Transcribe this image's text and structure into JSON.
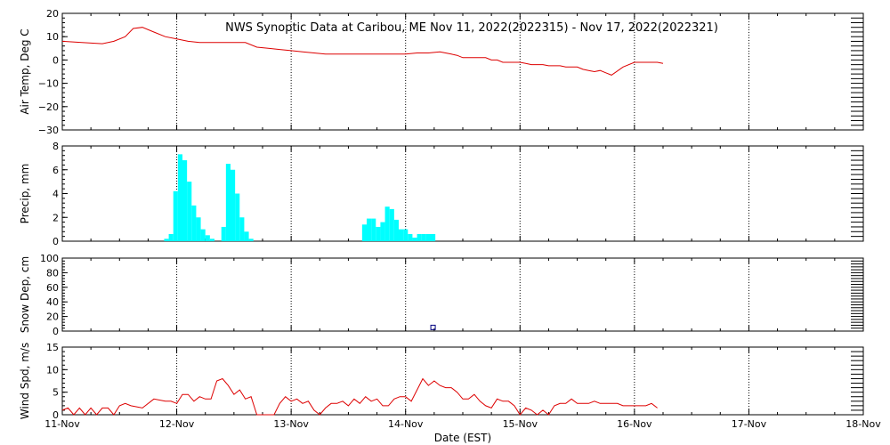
{
  "title": "NWS Synoptic Data at Caribou, ME    Nov 11, 2022(2022315) - Nov 17, 2022(2022321)",
  "xlabel": "Date (EST)",
  "x_ticks": [
    "11-Nov",
    "12-Nov",
    "13-Nov",
    "14-Nov",
    "15-Nov",
    "16-Nov",
    "17-Nov",
    "18-Nov"
  ],
  "colors": {
    "temp": "#dd0000",
    "wind": "#dd0000",
    "precip": "#00ffff",
    "snow": "#000080"
  },
  "chart_data": [
    {
      "type": "line",
      "ylabel": "Air Temp, Deg C",
      "ylim": [
        -30,
        20
      ],
      "yticks": [
        "20",
        "10",
        "0",
        "−10",
        "−20",
        "−30"
      ],
      "grid": true,
      "series": [
        {
          "x": [
            0,
            0.17,
            0.35,
            0.45,
            0.55,
            0.62,
            0.7,
            0.8,
            0.9,
            1.0,
            1.1,
            1.2,
            1.3,
            1.4,
            1.5,
            1.6,
            1.7,
            1.8,
            1.9,
            2.0,
            2.1,
            2.2,
            2.3,
            2.4,
            2.5,
            2.6,
            2.7,
            2.8,
            2.9,
            3.0,
            3.1,
            3.2,
            3.3,
            3.35,
            3.4,
            3.45,
            3.5,
            3.55,
            3.6,
            3.65,
            3.7,
            3.75,
            3.8,
            3.85,
            3.9,
            4.0,
            4.05,
            4.1,
            4.15,
            4.2,
            4.25,
            4.3,
            4.35,
            4.4,
            4.45,
            4.5,
            4.55,
            4.6,
            4.65,
            4.7,
            4.75,
            4.8,
            4.9,
            5.0,
            5.1,
            5.2,
            5.25
          ],
          "values": [
            8,
            7.5,
            7,
            8,
            10,
            13.5,
            14,
            12,
            10,
            9,
            8,
            7.5,
            7.5,
            7.5,
            7.5,
            7.5,
            5.5,
            5,
            4.5,
            4,
            3.5,
            3,
            2.5,
            2.5,
            2.5,
            2.5,
            2.5,
            2.5,
            2.5,
            2.5,
            3,
            3,
            3.5,
            3,
            2.5,
            2,
            1,
            1,
            1,
            1,
            1,
            0,
            0,
            -1,
            -1,
            -1,
            -1.5,
            -2,
            -2,
            -2,
            -2.5,
            -2.5,
            -2.5,
            -3,
            -3,
            -3,
            -4,
            -4.5,
            -5,
            -4.5,
            -5.5,
            -6.5,
            -3,
            -1,
            -1,
            -1,
            -1.5
          ]
        }
      ]
    },
    {
      "type": "bar",
      "ylabel": "Precip, mm",
      "ylim": [
        0,
        8
      ],
      "yticks": [
        "8",
        "6",
        "4",
        "2",
        "0"
      ],
      "grid": true,
      "bar_width": 0.04,
      "x": [
        0.91,
        0.95,
        0.99,
        1.03,
        1.07,
        1.11,
        1.15,
        1.19,
        1.23,
        1.27,
        1.31,
        1.41,
        1.45,
        1.49,
        1.53,
        1.57,
        1.61,
        1.65,
        2.64,
        2.68,
        2.72,
        2.76,
        2.8,
        2.84,
        2.88,
        2.92,
        2.96,
        3.0,
        3.04,
        3.08,
        3.12,
        3.16,
        3.2,
        3.24
      ],
      "values": [
        0.2,
        0.6,
        4.2,
        7.3,
        6.8,
        5,
        3,
        2,
        1,
        0.5,
        0.2,
        1.2,
        6.5,
        6,
        4,
        2,
        0.8,
        0.2,
        1.4,
        1.9,
        1.9,
        1.2,
        1.6,
        2.9,
        2.7,
        1.8,
        1,
        1,
        0.6,
        0.3,
        0.6,
        0.6,
        0.6,
        0.6
      ]
    },
    {
      "type": "scatter",
      "ylabel": "Snow Dep, cm",
      "ylim": [
        0,
        100
      ],
      "yticks": [
        "100",
        "80",
        "60",
        "40",
        "20",
        "0"
      ],
      "grid": true,
      "x": [
        3.24
      ],
      "values": [
        5
      ]
    },
    {
      "type": "line",
      "ylabel": "Wind Spd, m/s",
      "ylim": [
        0,
        15
      ],
      "yticks": [
        "15",
        "10",
        "5",
        "0"
      ],
      "grid": true,
      "series": [
        {
          "x": [
            0,
            0.05,
            0.1,
            0.15,
            0.2,
            0.25,
            0.3,
            0.35,
            0.4,
            0.45,
            0.5,
            0.55,
            0.6,
            0.7,
            0.8,
            0.9,
            0.95,
            1.0,
            1.05,
            1.1,
            1.15,
            1.2,
            1.25,
            1.3,
            1.35,
            1.4,
            1.45,
            1.5,
            1.55,
            1.6,
            1.65,
            1.7,
            1.75,
            1.8,
            1.85,
            1.9,
            1.95,
            2.0,
            2.05,
            2.1,
            2.15,
            2.2,
            2.25,
            2.3,
            2.35,
            2.4,
            2.45,
            2.5,
            2.55,
            2.6,
            2.65,
            2.7,
            2.75,
            2.8,
            2.85,
            2.9,
            2.95,
            3.0,
            3.05,
            3.1,
            3.15,
            3.2,
            3.25,
            3.3,
            3.35,
            3.4,
            3.45,
            3.5,
            3.55,
            3.6,
            3.65,
            3.7,
            3.75,
            3.8,
            3.85,
            3.9,
            3.95,
            4.0,
            4.05,
            4.1,
            4.15,
            4.2,
            4.25,
            4.3,
            4.35,
            4.4,
            4.45,
            4.5,
            4.55,
            4.6,
            4.65,
            4.7,
            4.75,
            4.8,
            4.85,
            4.9,
            4.95,
            5.0,
            5.05,
            5.1,
            5.15,
            5.2
          ],
          "values": [
            1,
            1.5,
            0,
            1.5,
            0,
            1.5,
            0,
            1.5,
            1.5,
            0,
            2,
            2.5,
            2,
            1.5,
            3.5,
            3,
            3,
            2.5,
            4.5,
            4.5,
            3,
            4,
            3.5,
            3.5,
            7.5,
            8,
            6.5,
            4.5,
            5.5,
            3.5,
            4,
            0,
            0,
            0,
            0,
            2.5,
            4,
            3,
            3.5,
            2.5,
            3,
            1,
            0,
            1.5,
            2.5,
            2.5,
            3,
            2,
            3.5,
            2.5,
            4,
            3,
            3.5,
            2,
            2,
            3.5,
            4,
            4,
            3,
            5.5,
            8,
            6.5,
            7.5,
            6.5,
            6,
            6,
            5,
            3.5,
            3.5,
            4.5,
            3,
            2,
            1.5,
            3.5,
            3,
            3,
            2,
            0,
            1.5,
            1,
            0,
            1,
            0,
            2,
            2.5,
            2.5,
            3.5,
            2.5,
            2.5,
            2.5,
            3,
            2.5,
            2.5,
            2.5,
            2.5,
            2,
            2,
            2,
            2,
            2,
            2.5,
            1.5
          ]
        }
      ]
    }
  ]
}
